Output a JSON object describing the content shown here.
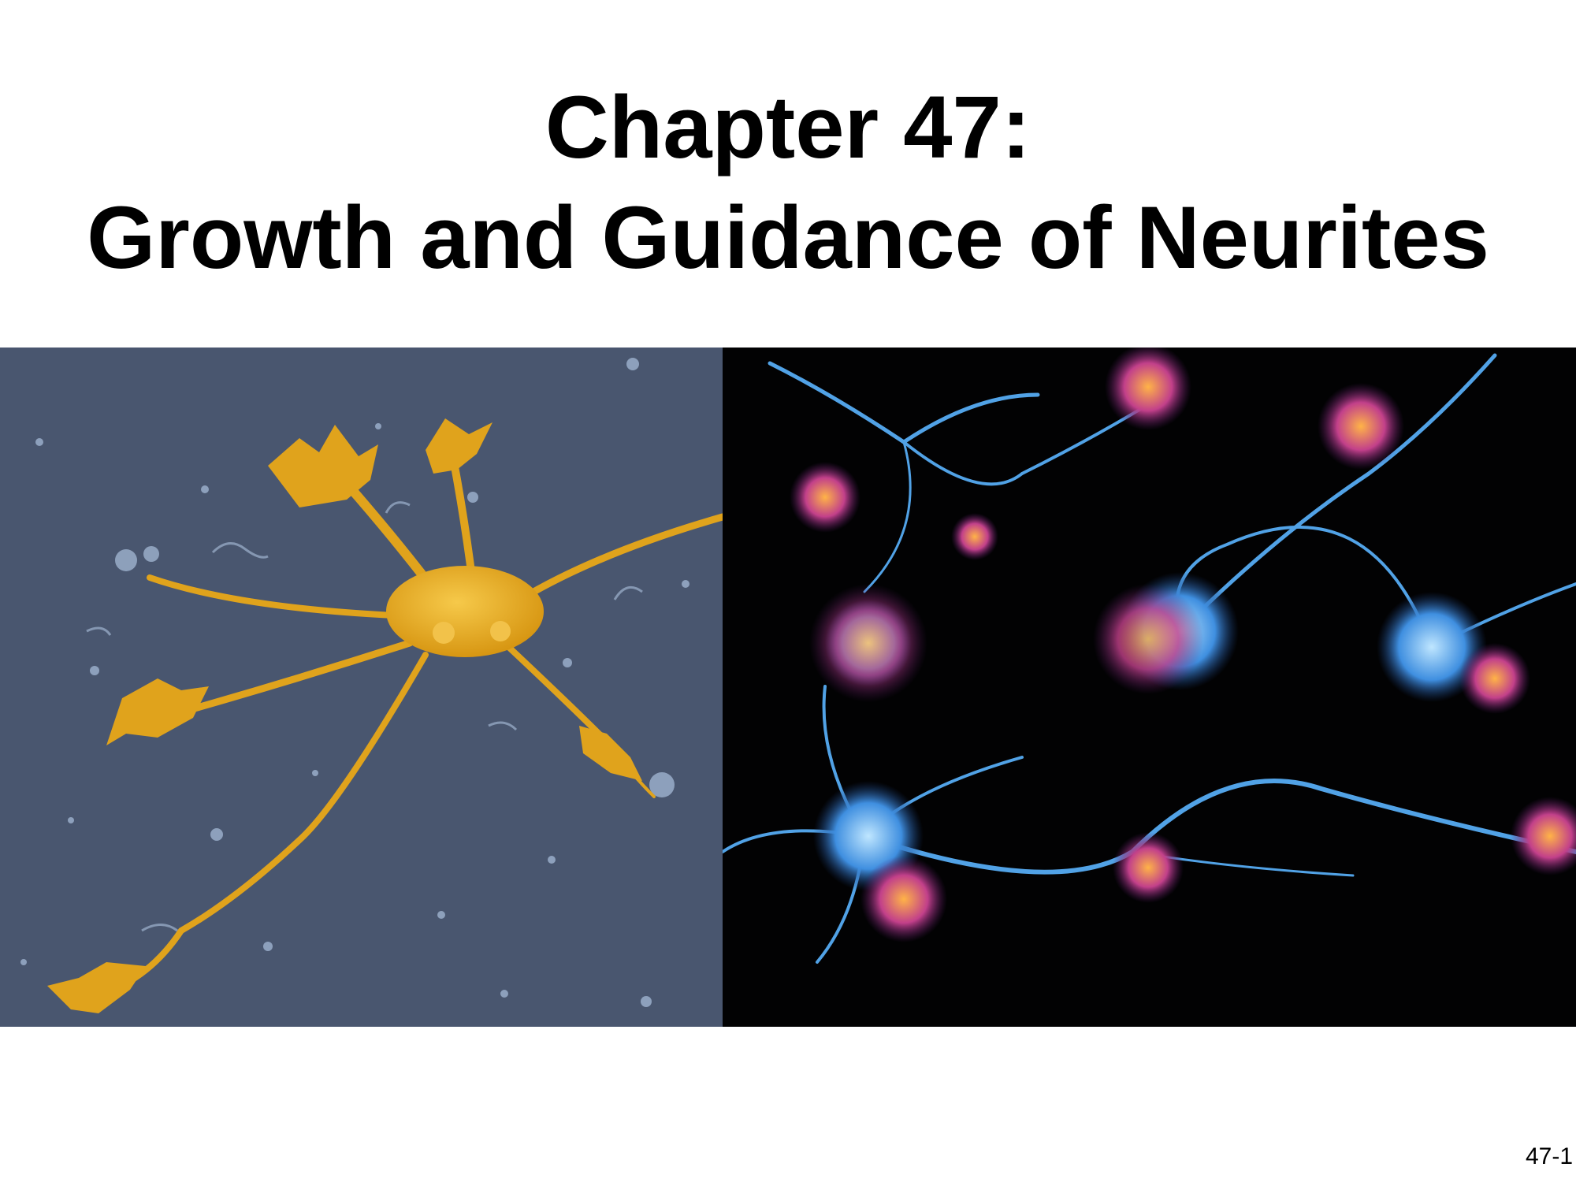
{
  "slide": {
    "title_line1": "Chapter 47:",
    "title_line2": "Growth and Guidance of Neurites",
    "page_number": "47-1"
  },
  "images": {
    "left": {
      "icon": "sem-neuron-micrograph-icon",
      "cell_color": "#e0a31c",
      "background_color": "#49566f"
    },
    "right": {
      "icon": "fluorescent-neurons-micrograph-icon",
      "axon_color": "#5ab4ff",
      "growth_cone_color": "#d65c9a",
      "background_color": "#020203"
    }
  }
}
